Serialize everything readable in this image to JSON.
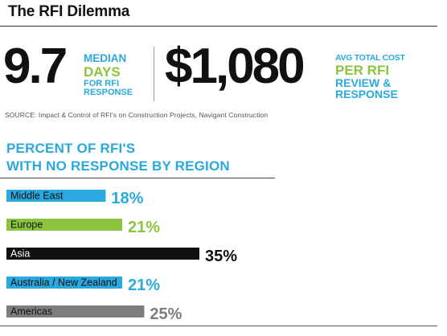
{
  "title": "The RFI Dilemma",
  "stats": {
    "median_value": "9.7",
    "median_label_1": "MEDIAN",
    "median_label_2": "DAYS",
    "median_label_3": "FOR RFI",
    "median_label_4": "RESPONSE",
    "cost_value": "$1,080",
    "cost_label_1": "AVG TOTAL COST",
    "cost_label_2": "PER RFI",
    "cost_label_3": "REVIEW &",
    "cost_label_4": "RESPONSE"
  },
  "source": "SOURCE: Impact & Control of RFI's on Construction Projects, Navigant Construction",
  "colors": {
    "blue": "#29a9df",
    "green": "#8dc43f",
    "black": "#111111",
    "gray": "#7d7d7d"
  },
  "chart_data": {
    "type": "bar",
    "orientation": "horizontal",
    "title": "PERCENT OF RFI'S WITH NO RESPONSE BY REGION",
    "title_lines": [
      "PERCENT OF RFI'S",
      "WITH NO RESPONSE BY REGION"
    ],
    "categories": [
      "Middle East",
      "Europe",
      "Asia",
      "Australia / New Zealand",
      "Americas"
    ],
    "values": [
      18,
      21,
      35,
      21,
      25
    ],
    "value_labels": [
      "18%",
      "21%",
      "35%",
      "21%",
      "25%"
    ],
    "colors": [
      "#29a9df",
      "#8dc43f",
      "#111111",
      "#29a9df",
      "#7d7d7d"
    ],
    "label_colors": [
      "#29a9df",
      "#8dc43f",
      "#111111",
      "#29a9df",
      "#7d7d7d"
    ],
    "unit": "%",
    "xlim": [
      0,
      35
    ],
    "grid": false
  }
}
